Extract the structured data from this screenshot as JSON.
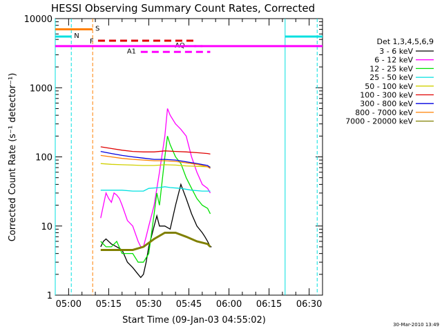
{
  "chart_data": {
    "type": "line",
    "title": "HESSI Observing Summary Count Rates, Corrected",
    "xlabel": "Start Time (09-Jan-03 04:55:02)",
    "ylabel": "Corrected Count Rate (s⁻¹ detector⁻¹)",
    "y_scale": "log",
    "ylim": [
      1,
      10000
    ],
    "xlim": [
      "04:55",
      "06:35"
    ],
    "x_ticks": [
      "05:00",
      "05:15",
      "05:30",
      "05:45",
      "06:00",
      "06:15",
      "06:30"
    ],
    "y_ticks": [
      "1",
      "10",
      "100",
      "1000",
      "10000"
    ],
    "legend": {
      "title": "Det 1,3,4,5,6,9",
      "placement": "right"
    },
    "series": [
      {
        "name": "3 - 6 keV",
        "color": "#000000",
        "x": [
          "05:12",
          "05:13",
          "05:14",
          "05:16",
          "05:18",
          "05:20",
          "05:22",
          "05:24",
          "05:26",
          "05:27",
          "05:28",
          "05:29",
          "05:30",
          "05:32",
          "05:33",
          "05:34",
          "05:36",
          "05:38",
          "05:40",
          "05:42",
          "05:44",
          "05:46",
          "05:48",
          "05:50",
          "05:51",
          "05:52",
          "05:53",
          "05:53.5"
        ],
        "y": [
          5,
          6,
          6.5,
          5.5,
          5,
          4.5,
          3,
          2.5,
          2,
          1.8,
          2,
          3,
          5,
          10,
          14,
          10,
          10,
          9,
          20,
          40,
          25,
          15,
          10,
          8,
          7,
          6,
          5,
          5
        ]
      },
      {
        "name": "6 - 12 keV",
        "color": "#ff00ff",
        "x": [
          "05:12",
          "05:13",
          "05:14",
          "05:15",
          "05:16",
          "05:17",
          "05:18",
          "05:19",
          "05:20",
          "05:22",
          "05:24",
          "05:26",
          "05:27",
          "05:28",
          "05:29",
          "05:30",
          "05:32",
          "05:34",
          "05:36",
          "05:37",
          "05:38",
          "05:40",
          "05:42",
          "05:44",
          "05:46",
          "05:48",
          "05:50",
          "05:52",
          "05:53"
        ],
        "y": [
          13,
          20,
          30,
          25,
          22,
          30,
          28,
          25,
          20,
          12,
          10,
          6,
          5,
          5,
          7,
          10,
          20,
          60,
          200,
          500,
          400,
          300,
          250,
          200,
          100,
          60,
          40,
          35,
          30
        ]
      },
      {
        "name": "12 - 25 keV",
        "color": "#00e000",
        "x": [
          "05:12",
          "05:14",
          "05:16",
          "05:18",
          "05:20",
          "05:22",
          "05:24",
          "05:26",
          "05:28",
          "05:30",
          "05:32",
          "05:33",
          "05:34",
          "05:36",
          "05:37",
          "05:38",
          "05:40",
          "05:42",
          "05:44",
          "05:46",
          "05:48",
          "05:50",
          "05:52",
          "05:53"
        ],
        "y": [
          6,
          5,
          5,
          6,
          4,
          4,
          4,
          3,
          3,
          4,
          15,
          30,
          20,
          100,
          200,
          150,
          100,
          80,
          50,
          35,
          25,
          20,
          18,
          15
        ]
      },
      {
        "name": "25 - 50 keV",
        "color": "#00e0e0",
        "x": [
          "05:12",
          "05:16",
          "05:20",
          "05:24",
          "05:28",
          "05:30",
          "05:34",
          "05:36",
          "05:38",
          "05:42",
          "05:46",
          "05:50",
          "05:53"
        ],
        "y": [
          33,
          33,
          33,
          32,
          32,
          35,
          36,
          37,
          36,
          35,
          33,
          32,
          32
        ]
      },
      {
        "name": "50 - 100 keV",
        "color": "#d0d000",
        "x": [
          "05:12",
          "05:16",
          "05:20",
          "05:24",
          "05:28",
          "05:32",
          "05:36",
          "05:40",
          "05:44",
          "05:48",
          "05:52",
          "05:53"
        ],
        "y": [
          80,
          78,
          77,
          76,
          75,
          75,
          77,
          76,
          74,
          73,
          72,
          72
        ]
      },
      {
        "name": "100 - 300 keV",
        "color": "#e00000",
        "x": [
          "05:12",
          "05:16",
          "05:20",
          "05:24",
          "05:28",
          "05:32",
          "05:36",
          "05:40",
          "05:44",
          "05:48",
          "05:52",
          "05:53"
        ],
        "y": [
          140,
          132,
          125,
          120,
          118,
          118,
          122,
          120,
          118,
          115,
          112,
          110
        ]
      },
      {
        "name": "300 - 800 keV",
        "color": "#0000e0",
        "x": [
          "05:12",
          "05:16",
          "05:20",
          "05:24",
          "05:28",
          "05:32",
          "05:36",
          "05:40",
          "05:44",
          "05:48",
          "05:52",
          "05:53"
        ],
        "y": [
          120,
          112,
          105,
          100,
          96,
          92,
          92,
          90,
          85,
          80,
          75,
          70
        ]
      },
      {
        "name": "800 - 7000 keV",
        "color": "#ff8000",
        "x": [
          "05:12",
          "05:16",
          "05:20",
          "05:24",
          "05:28",
          "05:32",
          "05:36",
          "05:40",
          "05:44",
          "05:48",
          "05:52",
          "05:53"
        ],
        "y": [
          105,
          100,
          95,
          92,
          90,
          88,
          88,
          86,
          82,
          78,
          72,
          68
        ]
      },
      {
        "name": "7000 - 20000 keV",
        "color": "#808000",
        "x": [
          "05:12",
          "05:16",
          "05:20",
          "05:24",
          "05:28",
          "05:32",
          "05:36",
          "05:40",
          "05:44",
          "05:48",
          "05:52",
          "05:53"
        ],
        "y": [
          4.5,
          4.5,
          4.5,
          4.5,
          5,
          6.5,
          8,
          8,
          7,
          6,
          5.5,
          5
        ]
      }
    ],
    "early_segment": {
      "color": "#00e0e0",
      "x": [
        "04:55",
        "05:01"
      ],
      "y": [
        5500,
        5500
      ]
    },
    "late_segment": {
      "color": "#00e0e0",
      "x": [
        "06:21",
        "06:35"
      ],
      "y": [
        5500,
        5500
      ]
    },
    "flags": [
      {
        "label": "S",
        "color": "#ff8000",
        "x": [
          "04:55",
          "05:09"
        ],
        "y": 7000,
        "style": "solid"
      },
      {
        "label": "N",
        "color": "#00e0e0",
        "x": [
          "05:01",
          "05:01"
        ],
        "y": 5500,
        "style": "solid"
      },
      {
        "label": "F",
        "color": "#e00000",
        "x": [
          "05:11",
          "05:48"
        ],
        "y": 4800,
        "style": "dashed"
      },
      {
        "label": "AQ",
        "color": "#ff00ff",
        "x": [
          "05:47",
          "05:51"
        ],
        "y": 4000,
        "style": "dotted"
      },
      {
        "label": "A1",
        "color": "#ff00ff",
        "x": [
          "05:27",
          "05:53"
        ],
        "y": 3300,
        "style": "dashed"
      },
      {
        "label": "",
        "color": "#ff00ff",
        "x": [
          "04:55",
          "06:35"
        ],
        "y": 4000,
        "style": "solid"
      }
    ],
    "vlines": [
      {
        "x": "04:55",
        "color": "#00e0e0",
        "style": "solid"
      },
      {
        "x": "05:01",
        "color": "#00e0e0",
        "style": "dashed"
      },
      {
        "x": "05:09",
        "color": "#ff8000",
        "style": "dashed"
      },
      {
        "x": "06:21",
        "color": "#00e0e0",
        "style": "solid"
      },
      {
        "x": "06:33",
        "color": "#00e0e0",
        "style": "dashed"
      }
    ],
    "footer": "30-Mar-2010 13:49"
  }
}
